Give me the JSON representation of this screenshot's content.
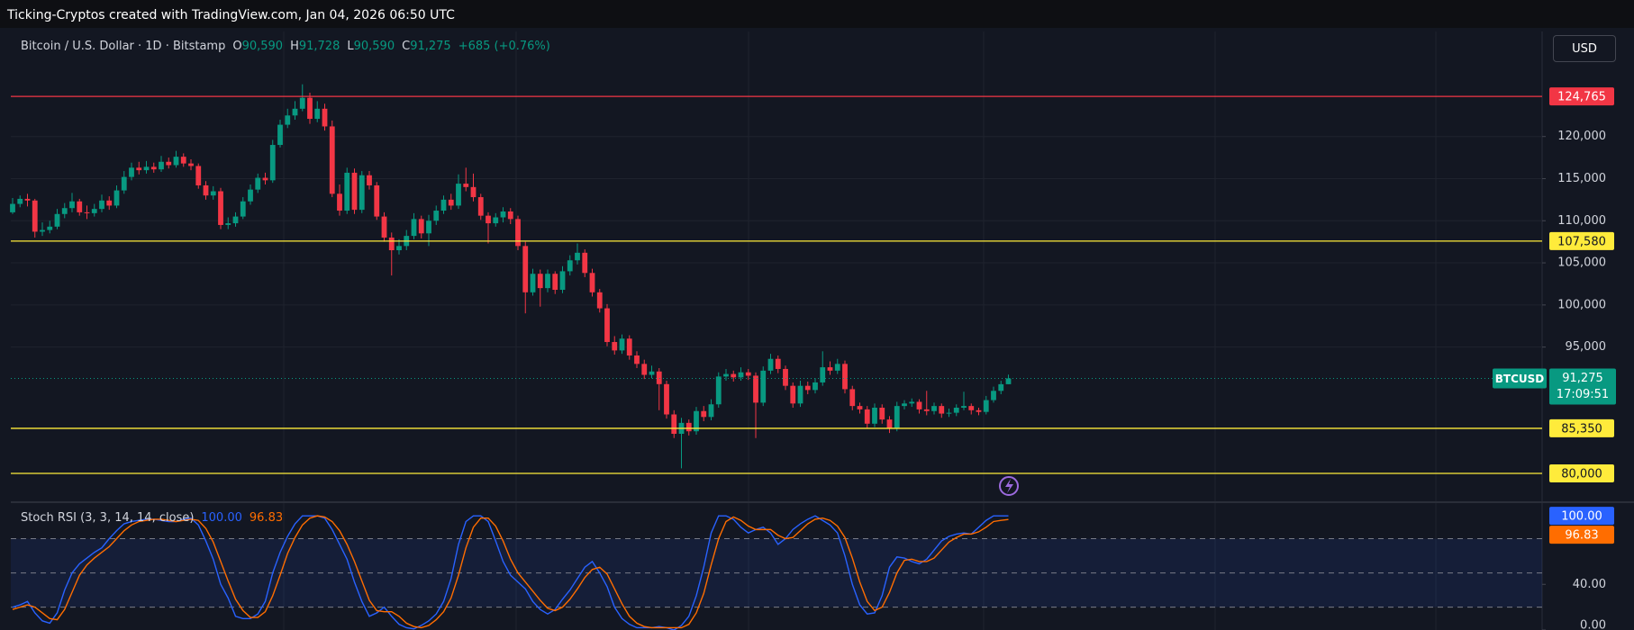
{
  "header": {
    "attribution": "Ticking-Cryptos created with TradingView.com, Jan 04, 2026 06:50 UTC"
  },
  "currency_button": "USD",
  "chart_data": [
    {
      "type": "candlestick",
      "title": "Bitcoin / U.S. Dollar · 1D · Bitstamp",
      "ohlc": [
        {
          "key": "O",
          "value": "90,590"
        },
        {
          "key": "H",
          "value": "91,728"
        },
        {
          "key": "L",
          "value": "90,590"
        },
        {
          "key": "C",
          "value": "91,275"
        }
      ],
      "change": "+685 (+0.76%)",
      "up_color": "#089981",
      "down_color": "#f23645",
      "ylim": [
        76900,
        132470
      ],
      "yticks": [
        {
          "value": 95000,
          "label": "95,000"
        },
        {
          "value": 100000,
          "label": "100,000"
        },
        {
          "value": 105000,
          "label": "105,000"
        },
        {
          "value": 110000,
          "label": "110,000"
        },
        {
          "value": 115000,
          "label": "115,000"
        },
        {
          "value": 120000,
          "label": "120,000"
        }
      ],
      "grid": true,
      "levels": [
        {
          "value": 124765,
          "label": "124,765",
          "color": "#f23645",
          "text_color": "#ffffff"
        },
        {
          "value": 107580,
          "label": "107,580",
          "color": "#ffeb3b",
          "text_color": "#131722"
        },
        {
          "value": 85350,
          "label": "85,350",
          "color": "#ffeb3b",
          "text_color": "#131722"
        },
        {
          "value": 80000,
          "label": "80,000",
          "color": "#ffeb3b",
          "text_color": "#131722"
        }
      ],
      "last_price": {
        "symbol": "BTCUSD",
        "value": 91275,
        "label": "91,275",
        "countdown": "17:09:51",
        "color": "#089981"
      },
      "candles": [
        [
          111000,
          112700,
          110800,
          112000
        ],
        [
          112000,
          113000,
          111600,
          112600
        ],
        [
          112600,
          113200,
          111700,
          112400
        ],
        [
          112400,
          112600,
          108000,
          108700
        ],
        [
          108700,
          109800,
          108200,
          108900
        ],
        [
          108900,
          110000,
          108500,
          109300
        ],
        [
          109300,
          111400,
          109000,
          110800
        ],
        [
          110800,
          112100,
          110300,
          111500
        ],
        [
          111500,
          113300,
          111000,
          112300
        ],
        [
          112300,
          112600,
          110600,
          111000
        ],
        [
          111000,
          111800,
          110200,
          110900
        ],
        [
          110900,
          112000,
          110500,
          111400
        ],
        [
          111400,
          113100,
          111000,
          112400
        ],
        [
          112400,
          112900,
          111300,
          111800
        ],
        [
          111800,
          114200,
          111500,
          113600
        ],
        [
          113600,
          115900,
          113200,
          115200
        ],
        [
          115200,
          116900,
          114800,
          116300
        ],
        [
          116300,
          117000,
          115500,
          116000
        ],
        [
          116000,
          117100,
          115600,
          116400
        ],
        [
          116400,
          116900,
          115700,
          116100
        ],
        [
          116100,
          117700,
          115800,
          117000
        ],
        [
          117000,
          117500,
          116200,
          116600
        ],
        [
          116600,
          118300,
          116300,
          117600
        ],
        [
          117600,
          118000,
          116400,
          116800
        ],
        [
          116800,
          117300,
          116000,
          116500
        ],
        [
          116500,
          116800,
          113800,
          114200
        ],
        [
          114200,
          114700,
          112500,
          113000
        ],
        [
          113000,
          114100,
          112500,
          113500
        ],
        [
          113500,
          113900,
          109000,
          109500
        ],
        [
          109500,
          110400,
          109000,
          109700
        ],
        [
          109700,
          111000,
          109300,
          110500
        ],
        [
          110500,
          112800,
          110200,
          112300
        ],
        [
          112300,
          114300,
          111900,
          113700
        ],
        [
          113700,
          115600,
          113300,
          115100
        ],
        [
          115100,
          115700,
          114300,
          114800
        ],
        [
          114800,
          119600,
          114500,
          119000
        ],
        [
          119000,
          122000,
          118700,
          121400
        ],
        [
          121400,
          123300,
          121000,
          122500
        ],
        [
          122500,
          124200,
          122000,
          123300
        ],
        [
          123300,
          126200,
          123000,
          124600
        ],
        [
          124600,
          125200,
          121500,
          122100
        ],
        [
          122100,
          124200,
          121700,
          123300
        ],
        [
          123300,
          123900,
          120700,
          121200
        ],
        [
          121200,
          121900,
          112800,
          113200
        ],
        [
          113200,
          114300,
          110600,
          111200
        ],
        [
          111200,
          116300,
          110800,
          115700
        ],
        [
          115700,
          116200,
          110800,
          111300
        ],
        [
          111300,
          115900,
          110900,
          115400
        ],
        [
          115400,
          115900,
          113700,
          114200
        ],
        [
          114200,
          114600,
          110100,
          110500
        ],
        [
          110500,
          111000,
          107500,
          108000
        ],
        [
          108000,
          108600,
          103500,
          106500
        ],
        [
          106500,
          107800,
          106000,
          107000
        ],
        [
          107000,
          108900,
          106500,
          108200
        ],
        [
          108200,
          110900,
          107800,
          110200
        ],
        [
          110200,
          110600,
          107900,
          108500
        ],
        [
          108500,
          110700,
          107000,
          110000
        ],
        [
          110000,
          111800,
          109500,
          111200
        ],
        [
          111200,
          113000,
          110800,
          112500
        ],
        [
          112500,
          113200,
          111300,
          111800
        ],
        [
          111800,
          115500,
          111400,
          114400
        ],
        [
          114400,
          116300,
          113500,
          114000
        ],
        [
          114000,
          115600,
          112300,
          112800
        ],
        [
          112800,
          113200,
          110100,
          110600
        ],
        [
          110600,
          111000,
          107300,
          109700
        ],
        [
          109700,
          110900,
          109300,
          110400
        ],
        [
          110400,
          111600,
          109800,
          111100
        ],
        [
          111100,
          111500,
          109600,
          110200
        ],
        [
          110200,
          110600,
          106500,
          107000
        ],
        [
          107000,
          107500,
          99000,
          101500
        ],
        [
          101500,
          104300,
          101100,
          103700
        ],
        [
          103700,
          104200,
          99800,
          102000
        ],
        [
          102000,
          104200,
          101500,
          103700
        ],
        [
          103700,
          104000,
          101300,
          101800
        ],
        [
          101800,
          104600,
          101400,
          104000
        ],
        [
          104000,
          105900,
          103500,
          105300
        ],
        [
          105300,
          107300,
          104800,
          106200
        ],
        [
          106200,
          106600,
          103300,
          103800
        ],
        [
          103800,
          104300,
          101000,
          101500
        ],
        [
          101500,
          101900,
          99100,
          99600
        ],
        [
          99600,
          100100,
          95100,
          95600
        ],
        [
          95600,
          96300,
          94100,
          94600
        ],
        [
          94600,
          96500,
          94200,
          96000
        ],
        [
          96000,
          96400,
          93500,
          94000
        ],
        [
          94000,
          94500,
          92500,
          93000
        ],
        [
          93000,
          93500,
          91200,
          91700
        ],
        [
          91700,
          92800,
          91300,
          92100
        ],
        [
          92100,
          92500,
          87500,
          90600
        ],
        [
          90600,
          91000,
          86500,
          87000
        ],
        [
          87000,
          87500,
          84200,
          84700
        ],
        [
          84700,
          86600,
          80600,
          86000
        ],
        [
          86000,
          86400,
          84500,
          85000
        ],
        [
          85000,
          87900,
          84600,
          87400
        ],
        [
          87400,
          88000,
          86200,
          86700
        ],
        [
          86700,
          88800,
          86300,
          88200
        ],
        [
          88200,
          92000,
          87800,
          91500
        ],
        [
          91500,
          92400,
          91000,
          91800
        ],
        [
          91800,
          92200,
          90900,
          91400
        ],
        [
          91400,
          92600,
          91000,
          92000
        ],
        [
          92000,
          92400,
          91100,
          91600
        ],
        [
          91600,
          92000,
          84200,
          88400
        ],
        [
          88400,
          92700,
          88000,
          92200
        ],
        [
          92200,
          94200,
          91800,
          93600
        ],
        [
          93600,
          94000,
          91900,
          92400
        ],
        [
          92400,
          92800,
          89900,
          90400
        ],
        [
          90400,
          90800,
          87800,
          88300
        ],
        [
          88300,
          91000,
          87900,
          90400
        ],
        [
          90400,
          90900,
          89400,
          89900
        ],
        [
          89900,
          91300,
          89500,
          90800
        ],
        [
          90800,
          94500,
          90400,
          92600
        ],
        [
          92600,
          93300,
          91700,
          92200
        ],
        [
          92200,
          93600,
          91800,
          93000
        ],
        [
          93000,
          93400,
          89500,
          90000
        ],
        [
          90000,
          90400,
          87500,
          88000
        ],
        [
          88000,
          88400,
          87100,
          87600
        ],
        [
          87600,
          88000,
          85400,
          85900
        ],
        [
          85900,
          88300,
          85500,
          87800
        ],
        [
          87800,
          88200,
          85900,
          86400
        ],
        [
          86400,
          86800,
          84800,
          85400
        ],
        [
          85400,
          88500,
          85000,
          88000
        ],
        [
          88000,
          88700,
          87600,
          88300
        ],
        [
          88300,
          88900,
          87900,
          88500
        ],
        [
          88500,
          88800,
          87100,
          87600
        ],
        [
          87600,
          89800,
          86900,
          87400
        ],
        [
          87400,
          88400,
          87000,
          88000
        ],
        [
          88000,
          88300,
          86600,
          87100
        ],
        [
          87100,
          87700,
          86700,
          87200
        ],
        [
          87200,
          88200,
          86800,
          87800
        ],
        [
          87800,
          89700,
          87500,
          88000
        ],
        [
          88000,
          88300,
          87000,
          87500
        ],
        [
          87500,
          87800,
          86900,
          87300
        ],
        [
          87300,
          89200,
          87000,
          88700
        ],
        [
          88700,
          90300,
          88400,
          89800
        ],
        [
          89800,
          91000,
          89400,
          90590
        ],
        [
          90590,
          91728,
          90590,
          91275
        ]
      ]
    },
    {
      "type": "line",
      "title": "Stoch RSI (3, 3, 14, 14, close)",
      "ylim": [
        0,
        108
      ],
      "yticks": [
        {
          "value": 40,
          "label": "40.00"
        },
        {
          "value": 0,
          "label": "0.00"
        }
      ],
      "bands": [
        20,
        50,
        80
      ],
      "series": [
        {
          "color": "#2962ff",
          "value_label": "100.00",
          "values": [
            20,
            22,
            25,
            15,
            8,
            6,
            15,
            35,
            50,
            58,
            63,
            68,
            72,
            80,
            87,
            93,
            95,
            96,
            97,
            97,
            96,
            95,
            95,
            97,
            98,
            92,
            78,
            62,
            40,
            28,
            12,
            10,
            10,
            14,
            25,
            50,
            68,
            82,
            93,
            100,
            100,
            100,
            98,
            88,
            75,
            62,
            42,
            25,
            12,
            15,
            20,
            12,
            5,
            2,
            1,
            4,
            8,
            14,
            25,
            45,
            75,
            95,
            100,
            100,
            95,
            78,
            60,
            48,
            42,
            36,
            25,
            18,
            14,
            18,
            27,
            35,
            45,
            55,
            60,
            50,
            38,
            20,
            10,
            5,
            2,
            2,
            2,
            3,
            2,
            0,
            4,
            12,
            30,
            55,
            85,
            100,
            100,
            97,
            90,
            85,
            88,
            90,
            85,
            75,
            80,
            88,
            93,
            97,
            100,
            96,
            92,
            85,
            65,
            40,
            22,
            14,
            15,
            30,
            55,
            64,
            63,
            60,
            58,
            62,
            70,
            78,
            82,
            84,
            85,
            84,
            90,
            96,
            100,
            100,
            100
          ]
        },
        {
          "color": "#ff6d00",
          "value_label": "96.83",
          "values": [
            18,
            20,
            22,
            20,
            15,
            10,
            9,
            18,
            33,
            48,
            57,
            63,
            68,
            73,
            80,
            87,
            92,
            95,
            96,
            97,
            97,
            96,
            95,
            96,
            97,
            96,
            89,
            77,
            60,
            43,
            27,
            17,
            11,
            11,
            16,
            30,
            48,
            67,
            81,
            92,
            98,
            100,
            99,
            95,
            87,
            75,
            60,
            43,
            26,
            17,
            16,
            16,
            12,
            6,
            3,
            2,
            4,
            9,
            16,
            28,
            48,
            72,
            90,
            98,
            98,
            91,
            78,
            62,
            50,
            42,
            34,
            26,
            19,
            17,
            20,
            27,
            36,
            46,
            53,
            55,
            49,
            36,
            23,
            12,
            6,
            3,
            2,
            2,
            2,
            2,
            2,
            5,
            15,
            32,
            57,
            80,
            95,
            99,
            96,
            91,
            88,
            88,
            88,
            83,
            80,
            81,
            87,
            93,
            97,
            98,
            96,
            91,
            81,
            63,
            42,
            25,
            17,
            20,
            33,
            50,
            61,
            62,
            60,
            60,
            63,
            70,
            77,
            81,
            84,
            84,
            86,
            90,
            95,
            96,
            96.83
          ]
        }
      ]
    }
  ]
}
